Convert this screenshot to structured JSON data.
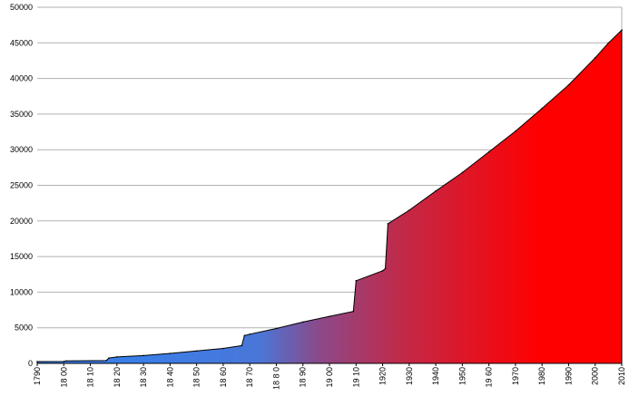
{
  "chart_data": {
    "type": "area",
    "title": "",
    "xlabel": "",
    "ylabel": "",
    "xlim": [
      1790,
      2010
    ],
    "ylim": [
      0,
      50000
    ],
    "grid": "horizontal",
    "legend": "none",
    "colors": {
      "start": "#3a7ee8",
      "mid": "#8a4a8a",
      "end": "#ff0000",
      "grid": "#b0b0b0",
      "outline": "#000000"
    },
    "y_ticks": [
      0,
      5000,
      10000,
      15000,
      20000,
      25000,
      30000,
      35000,
      40000,
      45000,
      50000
    ],
    "x_ticks": [
      "1790",
      "18 00",
      "18 10",
      "18 20",
      "18 30",
      "18 40",
      "18 50",
      "18 60",
      "18 70",
      "18 8 0",
      "18 90",
      "19 00",
      "19 10",
      "1920",
      "1930",
      "1940",
      "1950",
      "19 60",
      "1970",
      "1980",
      "1990",
      "2000",
      "2010"
    ],
    "x": [
      1790,
      1800,
      1801,
      1816,
      1817,
      1820,
      1830,
      1840,
      1850,
      1860,
      1867,
      1868,
      1870,
      1880,
      1890,
      1900,
      1909,
      1910,
      1920,
      1921,
      1922,
      1930,
      1940,
      1950,
      1960,
      1970,
      1980,
      1990,
      2000,
      2005,
      2010
    ],
    "values": [
      250,
      270,
      350,
      400,
      750,
      900,
      1100,
      1400,
      1750,
      2100,
      2500,
      3900,
      4100,
      4900,
      5800,
      6600,
      7300,
      11600,
      13000,
      13300,
      19600,
      21500,
      24200,
      26800,
      29700,
      32600,
      35800,
      39100,
      42900,
      45000,
      46800
    ]
  }
}
